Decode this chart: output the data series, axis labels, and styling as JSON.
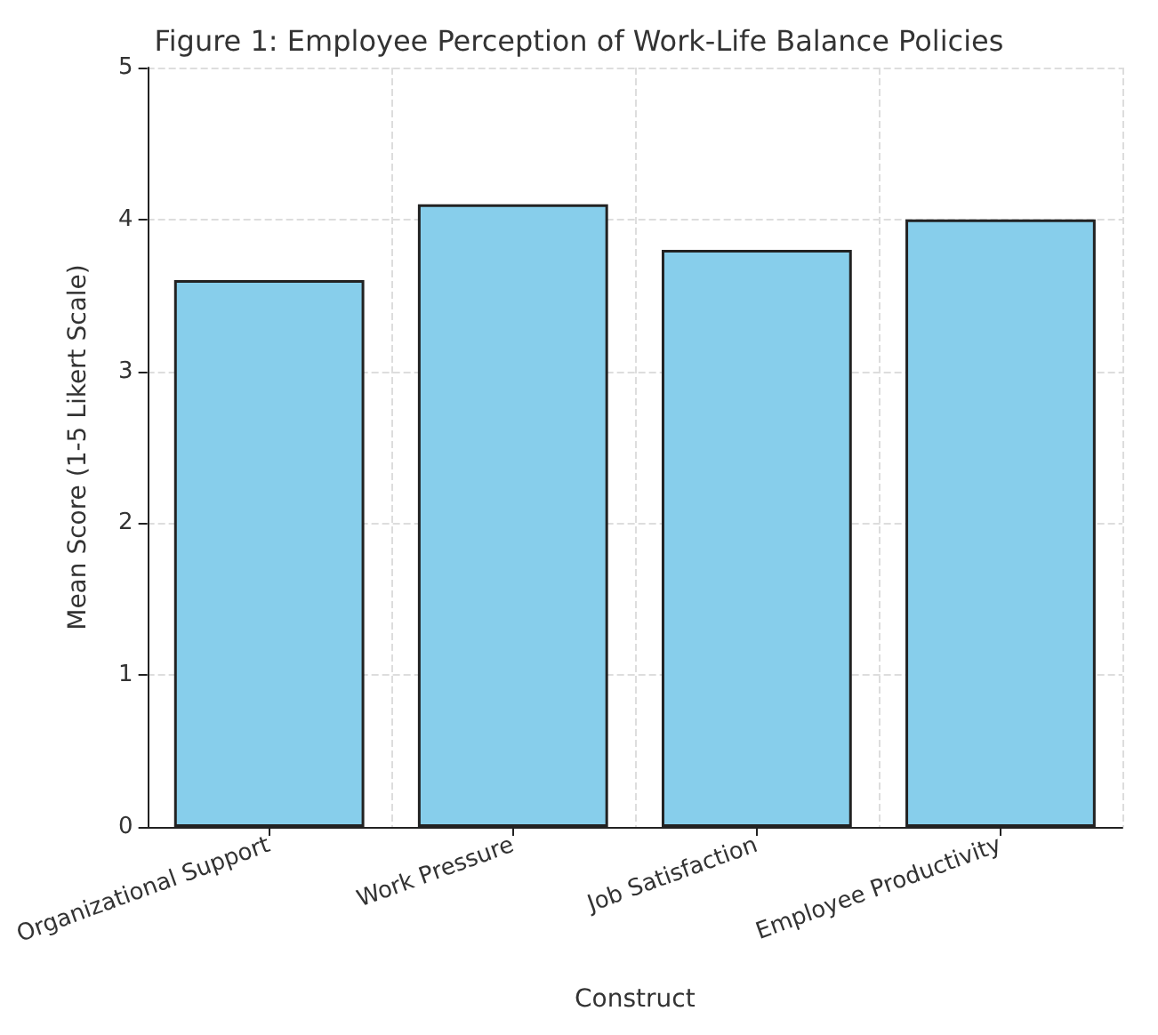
{
  "chart_data": {
    "type": "bar",
    "title": "Figure 1: Employee Perception of Work-Life Balance Policies",
    "xlabel": "Construct",
    "ylabel": "Mean Score (1-5 Likert Scale)",
    "categories": [
      "Organizational Support",
      "Work Pressure",
      "Job Satisfaction",
      "Employee Productivity"
    ],
    "values": [
      3.6,
      4.1,
      3.8,
      4.0
    ],
    "color": "#87ceeb",
    "ylim": [
      0,
      5
    ],
    "yticks": [
      0,
      1,
      2,
      3,
      4,
      5
    ],
    "grid": true
  }
}
